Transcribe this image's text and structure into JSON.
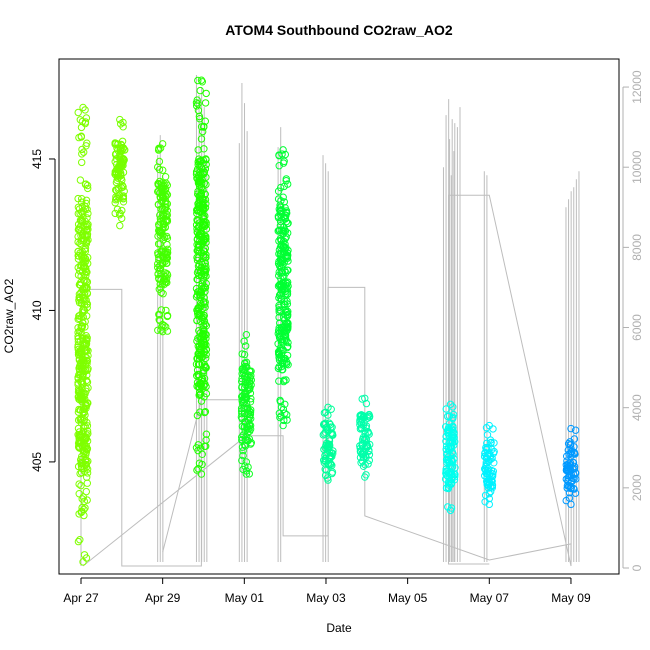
{
  "chart_data": {
    "type": "scatter",
    "title": "ATOM4 Southbound CO2raw_AO2",
    "xlabel": "Date",
    "ylabel": "CO2raw_AO2",
    "x_ticks": [
      "Apr 27",
      "Apr 29",
      "May 01",
      "May 03",
      "May 05",
      "May 07",
      "May 09"
    ],
    "xlim": [
      "Apr 26.5",
      "May 10.2"
    ],
    "ylim": [
      401.3,
      418.3
    ],
    "y_ticks": [
      405,
      410,
      415
    ],
    "y2lim": [
      -150,
      12700
    ],
    "y2_ticks": [
      0,
      2000,
      4000,
      6000,
      8000,
      10000,
      12000
    ],
    "colors": {
      "point_lime": "#66ff00",
      "point_green": "#22ff00",
      "point_teal": "#00ffaa",
      "point_cyan": "#00ffff",
      "point_blue": "#0099ff",
      "line": "#bdbdbd"
    },
    "point_clusters": [
      {
        "day": 0.05,
        "min": 401.7,
        "max": 416.7,
        "color": "#7fff00"
      },
      {
        "day": 0.95,
        "min": 412.8,
        "max": 416.3,
        "color": "#77ff00"
      },
      {
        "day": 2.0,
        "min": 409.3,
        "max": 415.5,
        "color": "#44ff00"
      },
      {
        "day": 2.95,
        "min": 404.6,
        "max": 417.6,
        "color": "#22ff00"
      },
      {
        "day": 4.05,
        "min": 404.6,
        "max": 409.2,
        "color": "#11ff22"
      },
      {
        "day": 4.95,
        "min": 406.2,
        "max": 415.3,
        "color": "#00ff33"
      },
      {
        "day": 6.05,
        "min": 404.4,
        "max": 406.8,
        "color": "#00ff99"
      },
      {
        "day": 6.95,
        "min": 404.5,
        "max": 407.1,
        "color": "#00ffaa"
      },
      {
        "day": 9.05,
        "min": 403.4,
        "max": 406.9,
        "color": "#00ffee"
      },
      {
        "day": 10.0,
        "min": 403.6,
        "max": 406.2,
        "color": "#00f2ff"
      },
      {
        "day": 12.0,
        "min": 403.6,
        "max": 406.1,
        "color": "#0099ff"
      }
    ]
  }
}
